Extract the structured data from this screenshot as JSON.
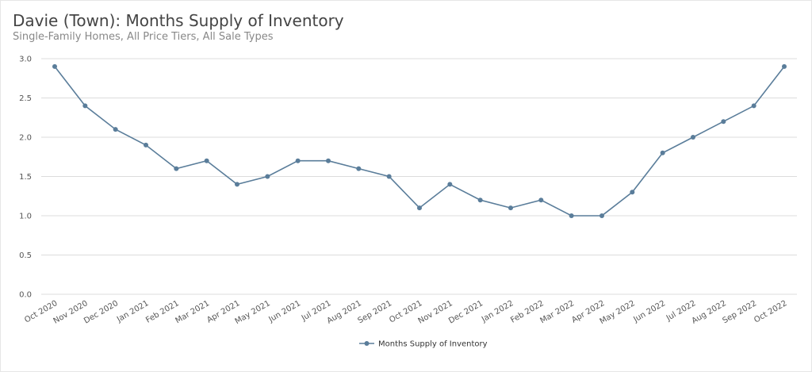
{
  "title": "Davie (Town): Months Supply of Inventory",
  "subtitle": "Single-Family Homes, All Price Tiers, All Sale Types",
  "chart_data": {
    "type": "line",
    "title": "Davie (Town): Months Supply of Inventory",
    "subtitle": "Single-Family Homes, All Price Tiers, All Sale Types",
    "categories": [
      "Oct 2020",
      "Nov 2020",
      "Dec 2020",
      "Jan 2021",
      "Feb 2021",
      "Mar 2021",
      "Apr 2021",
      "May 2021",
      "Jun 2021",
      "Jul 2021",
      "Aug 2021",
      "Sep 2021",
      "Oct 2021",
      "Nov 2021",
      "Dec 2021",
      "Jan 2022",
      "Feb 2022",
      "Mar 2022",
      "Apr 2022",
      "May 2022",
      "Jun 2022",
      "Jul 2022",
      "Aug 2022",
      "Sep 2022",
      "Oct 2022"
    ],
    "series": [
      {
        "name": "Months Supply of Inventory",
        "color": "#5a7d9a",
        "values": [
          2.9,
          2.4,
          2.1,
          1.9,
          1.6,
          1.7,
          1.4,
          1.5,
          1.7,
          1.7,
          1.6,
          1.5,
          1.1,
          1.4,
          1.2,
          1.1,
          1.2,
          1.0,
          1.0,
          1.3,
          1.8,
          2.0,
          2.2,
          2.4,
          2.9
        ]
      }
    ],
    "ylim": [
      0,
      3.0
    ],
    "yticks": [
      "0.0",
      "0.5",
      "1.0",
      "1.5",
      "2.0",
      "2.5",
      "3.0"
    ],
    "grid": true,
    "legend": "bottom-center"
  }
}
